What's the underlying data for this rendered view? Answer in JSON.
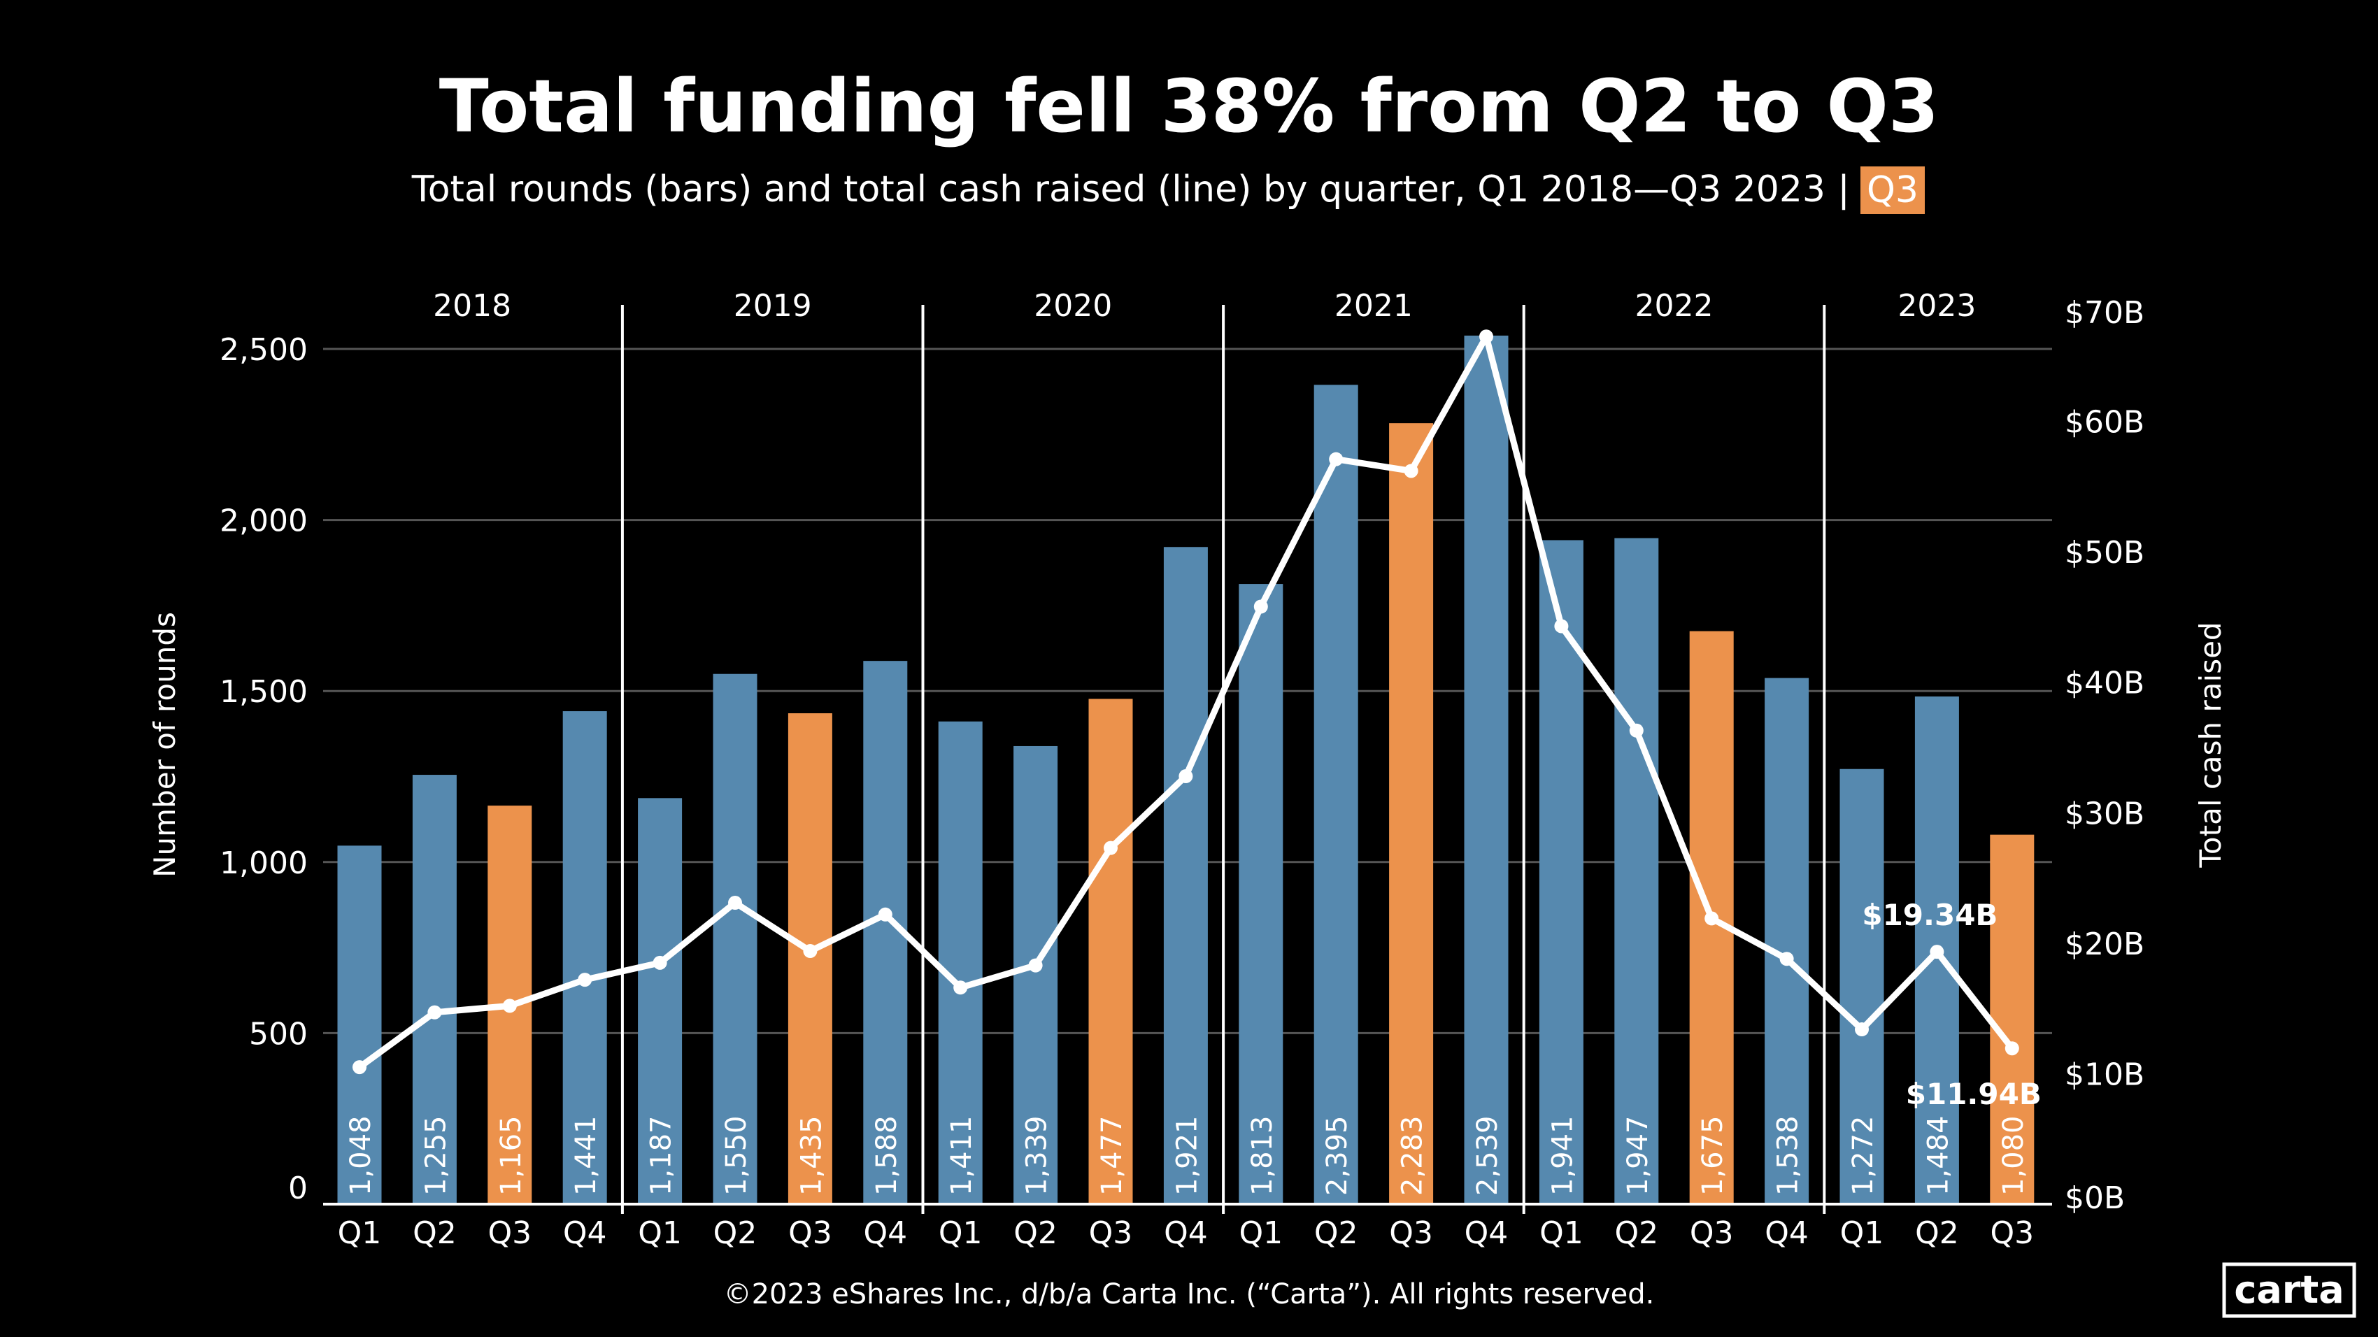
{
  "title": "Total funding fell 38% from Q2 to Q3",
  "subtitle": "Total rounds (bars) and total cash raised (line) by quarter, Q1 2018—Q3 2023",
  "subtitle_separator": "|",
  "subtitle_highlight": "Q3",
  "footer": "©2023 eShares Inc., d/b/a Carta Inc. (“Carta”). All rights reserved.",
  "logo": "carta",
  "colors": {
    "bar": "#5689af",
    "highlight": "#ec924c",
    "line": "#ffffff",
    "background": "#000000",
    "grid": "#555555"
  },
  "chart_data": {
    "type": "bar+line",
    "title": "Total funding fell 38% from Q2 to Q3",
    "ylabel": "Number of rounds",
    "y2label": "Total cash raised",
    "ylim": [
      0,
      2500
    ],
    "y2lim": [
      0,
      70
    ],
    "yticks": [
      "0",
      "500",
      "1,000",
      "1,500",
      "2,000",
      "2,500"
    ],
    "y2ticks": [
      "$0B",
      "$10B",
      "$20B",
      "$30B",
      "$40B",
      "$50B",
      "$60B",
      "$70B"
    ],
    "grid": true,
    "years": [
      "2018",
      "2019",
      "2020",
      "2021",
      "2022",
      "2023"
    ],
    "categories": [
      "Q1",
      "Q2",
      "Q3",
      "Q4",
      "Q1",
      "Q2",
      "Q3",
      "Q4",
      "Q1",
      "Q2",
      "Q3",
      "Q4",
      "Q1",
      "Q2",
      "Q3",
      "Q4",
      "Q1",
      "Q2",
      "Q3",
      "Q4",
      "Q1",
      "Q2",
      "Q3"
    ],
    "year_of_category": [
      "2018",
      "2018",
      "2018",
      "2018",
      "2019",
      "2019",
      "2019",
      "2019",
      "2020",
      "2020",
      "2020",
      "2020",
      "2021",
      "2021",
      "2021",
      "2021",
      "2022",
      "2022",
      "2022",
      "2022",
      "2023",
      "2023",
      "2023"
    ],
    "series": [
      {
        "type": "bar",
        "values": [
          1048,
          1255,
          1165,
          1441,
          1187,
          1550,
          1435,
          1588,
          1411,
          1339,
          1477,
          1921,
          1813,
          2395,
          2283,
          2539,
          1941,
          1947,
          1675,
          1538,
          1272,
          1484,
          1080
        ],
        "labels": [
          "1,048",
          "1,255",
          "1,165",
          "1,441",
          "1,187",
          "1,550",
          "1,435",
          "1,588",
          "1,411",
          "1,339",
          "1,477",
          "1,921",
          "1,813",
          "2,395",
          "2,283",
          "2,539",
          "1,941",
          "1,947",
          "1,675",
          "1,538",
          "1,272",
          "1,484",
          "1,080"
        ]
      },
      {
        "type": "line",
        "unit": "$B",
        "values": [
          10.5,
          14.7,
          15.2,
          17.2,
          18.5,
          23.1,
          19.4,
          22.2,
          16.6,
          18.3,
          27.3,
          32.8,
          45.8,
          57.1,
          56.2,
          66.5,
          44.3,
          36.3,
          21.9,
          18.8,
          13.4,
          19.34,
          11.94
        ]
      }
    ],
    "annotations": [
      {
        "index": 21,
        "text": "$19.34B"
      },
      {
        "index": 22,
        "text": "$11.94B"
      }
    ]
  }
}
